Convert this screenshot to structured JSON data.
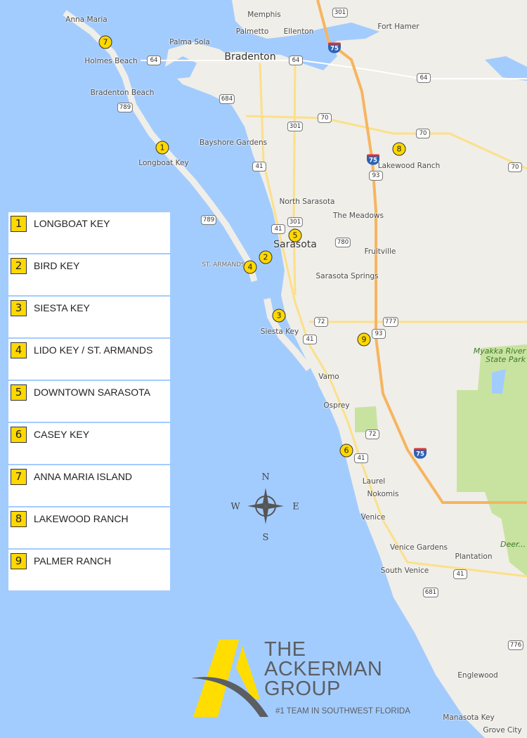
{
  "colors": {
    "water": "#a3ccfe",
    "land": "#f0eee8",
    "park": "#c8e3a0",
    "marker": "#ffd800",
    "interstate": "#f6b560",
    "highway": "#fbe08a",
    "logo_yellow": "#ffdd00",
    "logo_gray": "#5b5e62"
  },
  "map": {
    "labels": [
      "Anna Maria",
      "Holmes Beach",
      "Bradenton Beach",
      "Longboat Key",
      "Memphis",
      "Palmetto",
      "Ellenton",
      "Palma Sola",
      "Bradenton",
      "Fort Hamer",
      "Bayshore Gardens",
      "Lakewood Ranch",
      "North Sarasota",
      "The Meadows",
      "Sarasota",
      "Fruitville",
      "Sarasota Springs",
      "ST. ARMANDS",
      "Siesta Key",
      "Vamo",
      "Osprey",
      "Laurel",
      "Nokomis",
      "Venice",
      "Venice Gardens",
      "Plantation",
      "South Venice",
      "Englewood",
      "Manasota Key",
      "Grove City",
      "Myakka River State Park",
      "Deer..."
    ],
    "shields": [
      "301",
      "301",
      "301",
      "64",
      "64",
      "64",
      "684",
      "70",
      "70",
      "70",
      "789",
      "789",
      "41",
      "41",
      "41",
      "41",
      "41",
      "93",
      "93",
      "780",
      "72",
      "72",
      "681",
      "776",
      "777",
      "72"
    ],
    "interstate_shields": [
      "75",
      "75",
      "75"
    ],
    "markers": [
      "1",
      "2",
      "3",
      "4",
      "5",
      "6",
      "7",
      "8",
      "9"
    ]
  },
  "legend": {
    "items": [
      {
        "num": "1",
        "label": "LONGBOAT KEY"
      },
      {
        "num": "2",
        "label": "BIRD KEY"
      },
      {
        "num": "3",
        "label": "SIESTA KEY"
      },
      {
        "num": "4",
        "label": "LIDO KEY / ST. ARMANDS"
      },
      {
        "num": "5",
        "label": "DOWNTOWN SARASOTA"
      },
      {
        "num": "6",
        "label": "CASEY KEY"
      },
      {
        "num": "7",
        "label": "ANNA MARIA ISLAND"
      },
      {
        "num": "8",
        "label": "LAKEWOOD RANCH"
      },
      {
        "num": "9",
        "label": "PALMER RANCH"
      }
    ]
  },
  "compass": {
    "n": "N",
    "s": "S",
    "e": "E",
    "w": "W"
  },
  "logo": {
    "line1": "THE",
    "line2": "ACKERMAN",
    "line3": "GROUP",
    "tagline": "#1 TEAM IN SOUTHWEST FLORIDA"
  }
}
